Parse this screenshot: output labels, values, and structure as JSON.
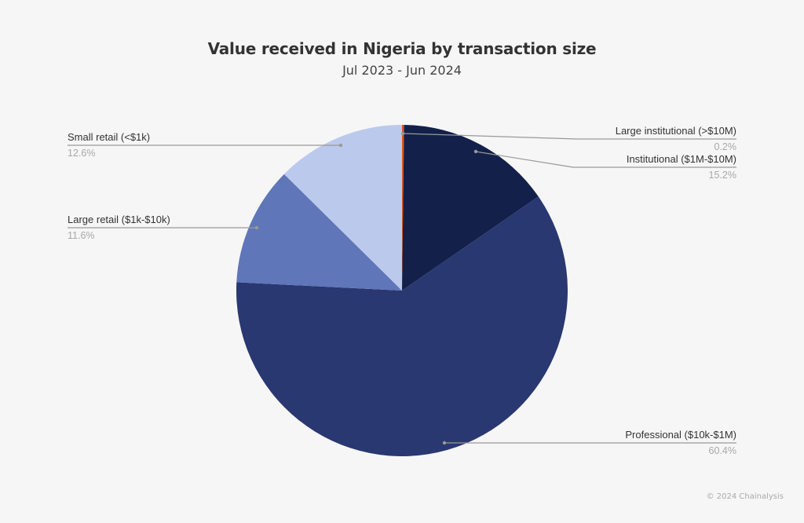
{
  "chart_data": {
    "type": "pie",
    "title": "Value received in Nigeria by transaction size",
    "subtitle": "Jul 2023 - Jun 2024",
    "start_angle_deg": 0,
    "direction": "clockwise",
    "slices": [
      {
        "label": "Large institutional (>$10M)",
        "value": 0.2,
        "display": "0.2%",
        "color": "#e0541c"
      },
      {
        "label": "Institutional ($1M-$10M)",
        "value": 15.2,
        "display": "15.2%",
        "color": "#13204a"
      },
      {
        "label": "Professional ($10k-$1M)",
        "value": 60.4,
        "display": "60.4%",
        "color": "#293871"
      },
      {
        "label": "Large retail ($1k-$10k)",
        "value": 11.6,
        "display": "11.6%",
        "color": "#5f76b8"
      },
      {
        "label": "Small retail (<$1k)",
        "value": 12.6,
        "display": "12.6%",
        "color": "#bbc9ec"
      }
    ],
    "legend_position": "callout labels"
  },
  "header": {
    "title": "Value received in Nigeria by transaction size",
    "subtitle": "Jul 2023 - Jun 2024"
  },
  "labels": {
    "large_institutional": {
      "name": "Large institutional (>$10M)",
      "pct": "0.2%"
    },
    "institutional": {
      "name": "Institutional ($1M-$10M)",
      "pct": "15.2%"
    },
    "professional": {
      "name": "Professional ($10k-$1M)",
      "pct": "60.4%"
    },
    "large_retail": {
      "name": "Large retail ($1k-$10k)",
      "pct": "11.6%"
    },
    "small_retail": {
      "name": "Small retail (<$1k)",
      "pct": "12.6%"
    }
  },
  "footer": {
    "copyright": "© 2024 Chainalysis"
  }
}
